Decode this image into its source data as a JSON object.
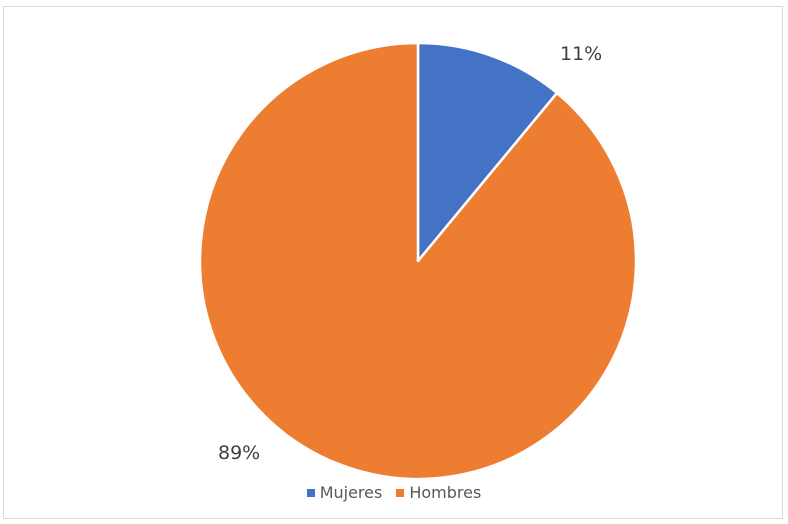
{
  "chart_data": {
    "type": "pie",
    "title": "",
    "slices": [
      {
        "name": "Mujeres",
        "value": 11,
        "label": "11%",
        "color": "#4472C4"
      },
      {
        "name": "Hombres",
        "value": 89,
        "label": "89%",
        "color": "#ED7D31"
      }
    ],
    "start_angle_deg": 0,
    "direction": "clockwise",
    "legend_position": "bottom",
    "slice_border_color": "#ffffff"
  }
}
